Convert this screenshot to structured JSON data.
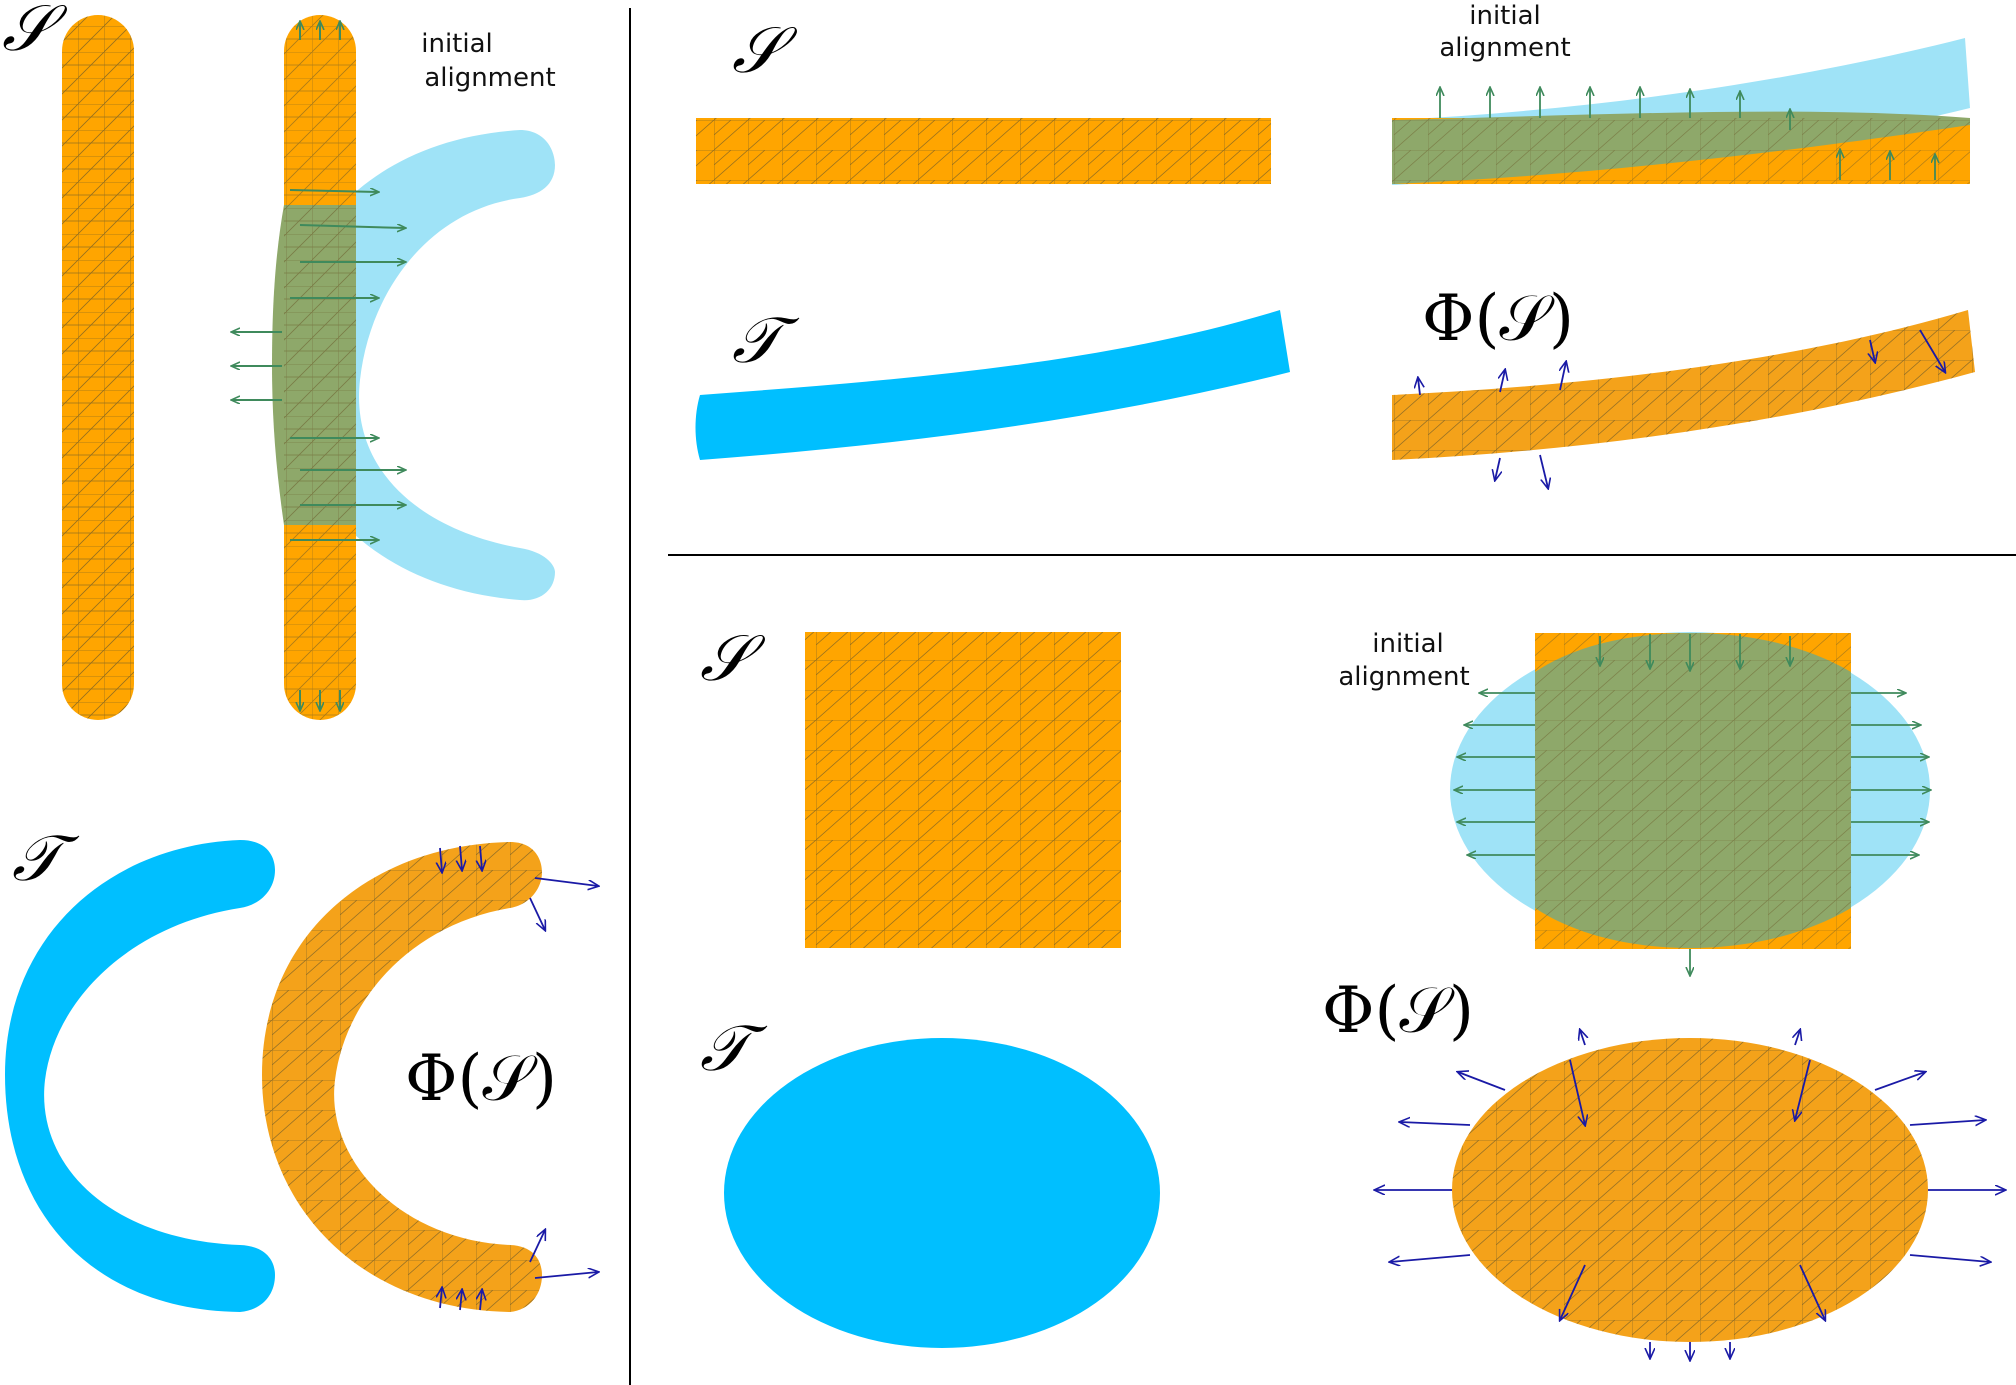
{
  "symbols": {
    "source": "𝒮",
    "target": "𝒯",
    "deformed": "Φ(𝒮)"
  },
  "notes": {
    "initial_line1": "initial",
    "initial_line2": "alignment"
  },
  "colors": {
    "source_fill": "#ffa500",
    "target_fill": "#00bfff",
    "target_overlay": "#9fe3f7",
    "overlap_fill": "#8ea86a",
    "mesh_line": "#6b5a2a",
    "initial_arrow": "#3f8a5c",
    "final_arrow": "#1a1aa6",
    "divider": "#000000"
  }
}
